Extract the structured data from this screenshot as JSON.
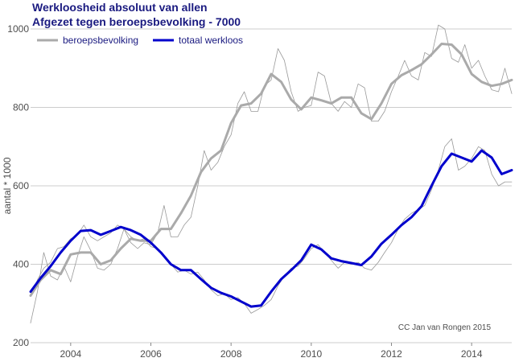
{
  "chart_data": {
    "type": "line",
    "title": "Werkloosheid absoluut van allen",
    "subtitle": "Afgezet tegen beroepsbevolking - 7000",
    "ylabel": "aantal * 1000",
    "xlabel": "",
    "xlim": [
      2003.0,
      2015.0
    ],
    "ylim": [
      200,
      1000
    ],
    "x_ticks": [
      2004,
      2006,
      2008,
      2010,
      2012,
      2014
    ],
    "y_ticks": [
      200,
      400,
      600,
      800,
      1000
    ],
    "grid": "horizontal",
    "legend_position": "top-left",
    "credit": "CC Jan van Rongen 2015",
    "series": [
      {
        "name": "beroepsbevolking",
        "color": "#aaaaaa",
        "style": "smoothed",
        "x": [
          2003.0,
          2003.25,
          2003.5,
          2003.75,
          2004.0,
          2004.25,
          2004.5,
          2004.75,
          2005.0,
          2005.25,
          2005.5,
          2005.75,
          2006.0,
          2006.25,
          2006.5,
          2006.75,
          2007.0,
          2007.25,
          2007.5,
          2007.75,
          2008.0,
          2008.25,
          2008.5,
          2008.75,
          2009.0,
          2009.25,
          2009.5,
          2009.75,
          2010.0,
          2010.25,
          2010.5,
          2010.75,
          2011.0,
          2011.25,
          2011.5,
          2011.75,
          2012.0,
          2012.25,
          2012.5,
          2012.75,
          2013.0,
          2013.25,
          2013.5,
          2013.75,
          2014.0,
          2014.25,
          2014.5,
          2014.75,
          2015.0
        ],
        "y": [
          320,
          360,
          385,
          375,
          425,
          430,
          430,
          400,
          410,
          440,
          465,
          460,
          460,
          490,
          490,
          530,
          575,
          635,
          670,
          690,
          760,
          805,
          810,
          835,
          885,
          865,
          820,
          795,
          825,
          818,
          810,
          825,
          825,
          785,
          770,
          810,
          860,
          882,
          895,
          910,
          935,
          962,
          960,
          935,
          885,
          865,
          855,
          860,
          870
        ]
      },
      {
        "name": "beroepsbevolking (maandelijks)",
        "color": "#999999",
        "style": "raw",
        "x": [
          2003.0,
          2003.17,
          2003.33,
          2003.5,
          2003.67,
          2003.83,
          2004.0,
          2004.17,
          2004.33,
          2004.5,
          2004.67,
          2004.83,
          2005.0,
          2005.17,
          2005.33,
          2005.5,
          2005.67,
          2005.83,
          2006.0,
          2006.17,
          2006.33,
          2006.5,
          2006.67,
          2006.83,
          2007.0,
          2007.17,
          2007.33,
          2007.5,
          2007.67,
          2007.83,
          2008.0,
          2008.17,
          2008.33,
          2008.5,
          2008.67,
          2008.83,
          2009.0,
          2009.17,
          2009.33,
          2009.5,
          2009.67,
          2009.83,
          2010.0,
          2010.17,
          2010.33,
          2010.5,
          2010.67,
          2010.83,
          2011.0,
          2011.17,
          2011.33,
          2011.5,
          2011.67,
          2011.83,
          2012.0,
          2012.17,
          2012.33,
          2012.5,
          2012.67,
          2012.83,
          2013.0,
          2013.17,
          2013.33,
          2013.5,
          2013.67,
          2013.83,
          2014.0,
          2014.17,
          2014.33,
          2014.5,
          2014.67,
          2014.83,
          2015.0
        ],
        "y": [
          250,
          330,
          430,
          370,
          360,
          395,
          355,
          420,
          470,
          435,
          390,
          385,
          400,
          440,
          490,
          455,
          440,
          455,
          450,
          480,
          550,
          470,
          470,
          500,
          520,
          600,
          690,
          640,
          660,
          700,
          730,
          810,
          840,
          790,
          790,
          855,
          870,
          950,
          920,
          840,
          790,
          800,
          805,
          890,
          880,
          810,
          790,
          815,
          800,
          860,
          850,
          765,
          765,
          790,
          840,
          880,
          920,
          880,
          870,
          940,
          930,
          1010,
          1000,
          925,
          915,
          960,
          900,
          920,
          880,
          845,
          840,
          900,
          835
        ]
      },
      {
        "name": "totaal werkloos",
        "color": "#0000cc",
        "style": "smoothed",
        "x": [
          2003.0,
          2003.25,
          2003.5,
          2003.75,
          2004.0,
          2004.25,
          2004.5,
          2004.75,
          2005.0,
          2005.25,
          2005.5,
          2005.75,
          2006.0,
          2006.25,
          2006.5,
          2006.75,
          2007.0,
          2007.25,
          2007.5,
          2007.75,
          2008.0,
          2008.25,
          2008.5,
          2008.75,
          2009.0,
          2009.25,
          2009.5,
          2009.75,
          2010.0,
          2010.25,
          2010.5,
          2010.75,
          2011.0,
          2011.25,
          2011.5,
          2011.75,
          2012.0,
          2012.25,
          2012.5,
          2012.75,
          2013.0,
          2013.25,
          2013.5,
          2013.75,
          2014.0,
          2014.25,
          2014.5,
          2014.75,
          2015.0
        ],
        "y": [
          330,
          365,
          395,
          430,
          460,
          485,
          487,
          475,
          485,
          495,
          487,
          475,
          455,
          430,
          400,
          385,
          385,
          362,
          340,
          327,
          318,
          305,
          292,
          295,
          330,
          362,
          385,
          410,
          450,
          438,
          415,
          408,
          403,
          398,
          420,
          452,
          475,
          500,
          520,
          548,
          600,
          650,
          682,
          672,
          662,
          690,
          672,
          630,
          640
        ]
      },
      {
        "name": "totaal werkloos (maandelijks)",
        "color": "#999999",
        "style": "raw",
        "x": [
          2003.0,
          2003.17,
          2003.33,
          2003.5,
          2003.67,
          2003.83,
          2004.0,
          2004.17,
          2004.33,
          2004.5,
          2004.67,
          2004.83,
          2005.0,
          2005.17,
          2005.33,
          2005.5,
          2005.67,
          2005.83,
          2006.0,
          2006.17,
          2006.33,
          2006.5,
          2006.67,
          2006.83,
          2007.0,
          2007.17,
          2007.33,
          2007.5,
          2007.67,
          2007.83,
          2008.0,
          2008.17,
          2008.33,
          2008.5,
          2008.67,
          2008.83,
          2009.0,
          2009.17,
          2009.33,
          2009.5,
          2009.67,
          2009.83,
          2010.0,
          2010.17,
          2010.33,
          2010.5,
          2010.67,
          2010.83,
          2011.0,
          2011.17,
          2011.33,
          2011.5,
          2011.67,
          2011.83,
          2012.0,
          2012.17,
          2012.33,
          2012.5,
          2012.67,
          2012.83,
          2013.0,
          2013.17,
          2013.33,
          2013.5,
          2013.67,
          2013.83,
          2014.0,
          2014.17,
          2014.33,
          2014.5,
          2014.67,
          2014.83,
          2015.0
        ],
        "y": [
          320,
          360,
          390,
          405,
          440,
          445,
          465,
          475,
          500,
          470,
          460,
          470,
          480,
          500,
          490,
          470,
          460,
          465,
          445,
          440,
          420,
          400,
          380,
          385,
          375,
          380,
          360,
          335,
          320,
          325,
          310,
          315,
          300,
          275,
          285,
          295,
          310,
          345,
          370,
          390,
          395,
          415,
          440,
          450,
          430,
          410,
          390,
          405,
          400,
          405,
          390,
          385,
          405,
          430,
          455,
          490,
          515,
          530,
          540,
          550,
          590,
          640,
          700,
          720,
          640,
          650,
          670,
          700,
          690,
          630,
          600,
          610,
          610
        ]
      }
    ]
  }
}
